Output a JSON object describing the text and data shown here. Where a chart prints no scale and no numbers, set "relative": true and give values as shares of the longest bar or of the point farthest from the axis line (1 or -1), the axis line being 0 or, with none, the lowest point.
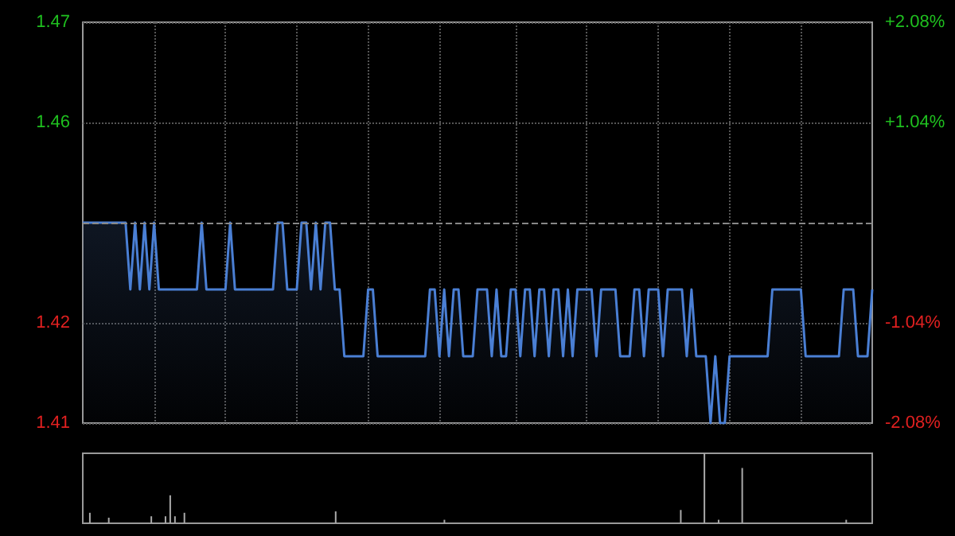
{
  "chart_data": [
    {
      "type": "area",
      "categories": [
        null,
        null,
        null,
        null,
        null,
        null,
        null,
        null,
        null,
        null,
        null,
        null,
        null,
        null,
        null,
        null,
        null,
        null,
        null,
        null,
        null,
        null,
        null,
        null,
        null,
        null,
        null,
        null,
        null,
        null,
        null,
        null,
        null,
        null,
        null,
        null,
        null,
        null,
        null,
        null,
        null,
        null,
        null,
        null,
        null,
        null,
        null,
        null,
        null,
        null,
        null,
        null,
        null,
        null,
        null,
        null,
        null,
        null,
        null,
        null,
        null,
        null,
        null,
        null,
        null,
        null,
        null,
        null,
        null,
        null,
        null,
        null,
        null,
        null,
        null,
        null,
        null,
        null,
        null,
        null,
        null,
        null,
        null,
        null,
        null,
        null,
        null,
        null,
        null,
        null,
        null,
        null,
        null,
        null,
        null,
        null,
        null,
        null,
        null,
        null,
        null,
        null,
        null,
        null,
        null,
        null,
        null,
        null,
        null,
        null,
        null,
        null,
        null,
        null,
        null,
        null,
        null,
        null,
        null,
        null,
        null,
        null,
        null,
        null,
        null,
        null,
        null,
        null,
        null,
        null,
        null,
        null,
        null,
        null,
        null,
        null,
        null,
        null,
        null,
        null,
        null,
        null,
        null,
        null,
        null,
        null,
        null,
        null,
        null,
        null,
        null,
        null,
        null,
        null,
        null,
        null,
        null,
        null,
        null,
        null,
        null,
        null,
        null,
        null,
        null,
        null,
        null
      ],
      "series": [
        {
          "color": "#4a7fd4",
          "values": [
            1.44,
            1.44,
            1.44,
            1.44,
            1.44,
            1.44,
            1.44,
            1.44,
            1.44,
            1.44,
            1.43,
            1.44,
            1.43,
            1.44,
            1.43,
            1.44,
            1.43,
            1.43,
            1.43,
            1.43,
            1.43,
            1.43,
            1.43,
            1.43,
            1.43,
            1.44,
            1.43,
            1.43,
            1.43,
            1.43,
            1.43,
            1.44,
            1.43,
            1.43,
            1.43,
            1.43,
            1.43,
            1.43,
            1.43,
            1.43,
            1.43,
            1.44,
            1.44,
            1.43,
            1.43,
            1.43,
            1.44,
            1.44,
            1.43,
            1.44,
            1.43,
            1.44,
            1.44,
            1.43,
            1.43,
            1.42,
            1.42,
            1.42,
            1.42,
            1.42,
            1.43,
            1.43,
            1.42,
            1.42,
            1.42,
            1.42,
            1.42,
            1.42,
            1.42,
            1.42,
            1.42,
            1.42,
            1.42,
            1.43,
            1.43,
            1.42,
            1.43,
            1.42,
            1.43,
            1.43,
            1.42,
            1.42,
            1.42,
            1.43,
            1.43,
            1.43,
            1.42,
            1.43,
            1.42,
            1.42,
            1.43,
            1.43,
            1.42,
            1.43,
            1.43,
            1.42,
            1.43,
            1.43,
            1.42,
            1.43,
            1.43,
            1.42,
            1.43,
            1.42,
            1.43,
            1.43,
            1.43,
            1.43,
            1.42,
            1.43,
            1.43,
            1.43,
            1.43,
            1.42,
            1.42,
            1.42,
            1.43,
            1.43,
            1.42,
            1.43,
            1.43,
            1.43,
            1.42,
            1.43,
            1.43,
            1.43,
            1.43,
            1.42,
            1.43,
            1.42,
            1.42,
            1.42,
            1.41,
            1.42,
            1.41,
            1.41,
            1.42,
            1.42,
            1.42,
            1.42,
            1.42,
            1.42,
            1.42,
            1.42,
            1.42,
            1.43,
            1.43,
            1.43,
            1.43,
            1.43,
            1.43,
            1.43,
            1.42,
            1.42,
            1.42,
            1.42,
            1.42,
            1.42,
            1.42,
            1.42,
            1.43,
            1.43,
            1.43,
            1.42,
            1.42,
            1.42,
            1.43
          ]
        }
      ],
      "ylim": [
        1.41,
        1.47
      ],
      "yticks": [
        1.41,
        {
          "value": 1.425,
          "label": "1.42"
        },
        {
          "value": 1.455,
          "label": "1.46"
        },
        1.47
      ],
      "y2lim": [
        -2.08,
        2.08
      ],
      "y2ticks": [
        {
          "value": -2.08,
          "label": "-2.08%"
        },
        {
          "value": -1.04,
          "label": "-1.04%"
        },
        {
          "value": 1.04,
          "label": "+1.04%"
        },
        {
          "value": 2.08,
          "label": "+2.08%"
        }
      ],
      "ref_lines": [
        {
          "axis": "y",
          "value": 1.44,
          "line_style": "dashed",
          "color": "#888888"
        }
      ],
      "grid": true
    },
    {
      "type": "bar",
      "relative": true,
      "categories": [
        null,
        null,
        null,
        null,
        null,
        null,
        null,
        null,
        null,
        null,
        null,
        null,
        null,
        null,
        null,
        null,
        null,
        null,
        null,
        null,
        null,
        null,
        null,
        null,
        null,
        null,
        null,
        null,
        null,
        null,
        null,
        null,
        null,
        null,
        null,
        null,
        null,
        null,
        null,
        null,
        null,
        null,
        null,
        null,
        null,
        null,
        null,
        null,
        null,
        null,
        null,
        null,
        null,
        null,
        null,
        null,
        null,
        null,
        null,
        null,
        null,
        null,
        null,
        null,
        null,
        null,
        null,
        null,
        null,
        null,
        null,
        null,
        null,
        null,
        null,
        null,
        null,
        null,
        null,
        null,
        null,
        null,
        null,
        null,
        null,
        null,
        null,
        null,
        null,
        null,
        null,
        null,
        null,
        null,
        null,
        null,
        null,
        null,
        null,
        null,
        null,
        null,
        null,
        null,
        null,
        null,
        null,
        null,
        null,
        null,
        null,
        null,
        null,
        null,
        null,
        null,
        null,
        null,
        null,
        null,
        null,
        null,
        null,
        null,
        null,
        null,
        null,
        null,
        null,
        null,
        null,
        null,
        null,
        null,
        null,
        null,
        null,
        null,
        null,
        null,
        null,
        null,
        null,
        null,
        null,
        null,
        null,
        null,
        null,
        null,
        null,
        null,
        null,
        null,
        null,
        null,
        null,
        null,
        null,
        null,
        null,
        null,
        null,
        null,
        null,
        null,
        null
      ],
      "series": [
        {
          "color": "#aaaaaa",
          "values": [
            null,
            0.15,
            null,
            null,
            null,
            0.08,
            null,
            null,
            null,
            null,
            null,
            null,
            null,
            null,
            0.1,
            null,
            null,
            0.1,
            0.4,
            0.1,
            null,
            0.15,
            null,
            null,
            null,
            null,
            null,
            null,
            null,
            null,
            null,
            null,
            null,
            null,
            null,
            null,
            null,
            null,
            null,
            null,
            null,
            null,
            null,
            null,
            null,
            null,
            null,
            null,
            null,
            null,
            null,
            null,
            null,
            0.17,
            null,
            null,
            null,
            null,
            null,
            null,
            null,
            null,
            null,
            null,
            null,
            null,
            null,
            null,
            null,
            null,
            null,
            null,
            null,
            null,
            null,
            null,
            0.05,
            null,
            null,
            null,
            null,
            null,
            null,
            null,
            null,
            null,
            null,
            null,
            null,
            null,
            null,
            null,
            null,
            null,
            null,
            null,
            null,
            null,
            null,
            null,
            null,
            null,
            null,
            null,
            null,
            null,
            null,
            null,
            null,
            null,
            null,
            null,
            null,
            null,
            null,
            null,
            null,
            null,
            null,
            null,
            null,
            null,
            null,
            null,
            null,
            null,
            0.19,
            null,
            null,
            null,
            null,
            1,
            null,
            null,
            0.05,
            null,
            null,
            null,
            null,
            0.79,
            null,
            null,
            null,
            null,
            null,
            null,
            null,
            null,
            null,
            null,
            null,
            null,
            null,
            null,
            null,
            null,
            null,
            null,
            null,
            null,
            null,
            0.05,
            null,
            null,
            null,
            null,
            null
          ]
        }
      ],
      "grid": false
    }
  ]
}
